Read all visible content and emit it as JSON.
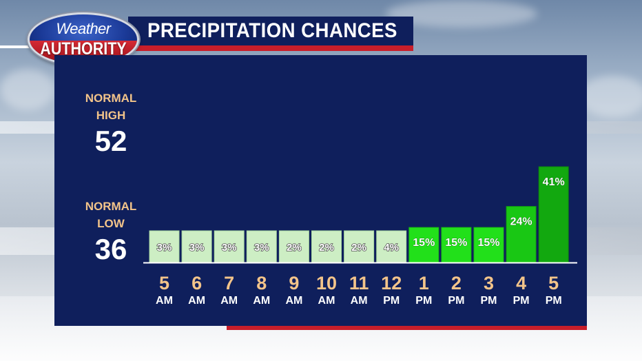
{
  "logo": {
    "top_text": "Weather",
    "bottom_text": "AUTHORITY"
  },
  "header": {
    "title": "PRECIPITATION CHANCES"
  },
  "normals": {
    "high_label_1": "NORMAL",
    "high_label_2": "HIGH",
    "high_value": "52",
    "low_label_1": "NORMAL",
    "low_label_2": "LOW",
    "low_value": "36"
  },
  "colors": {
    "panel": "#0f1f5c",
    "accent_red": "#c81e2a",
    "label_gold": "#f3c48a"
  },
  "chart_data": {
    "type": "bar",
    "title": "PRECIPITATION CHANCES",
    "xlabel": "",
    "ylabel": "",
    "ylim": [
      0,
      50
    ],
    "grid": false,
    "categories": [
      "5 AM",
      "6 AM",
      "7 AM",
      "8 AM",
      "9 AM",
      "10 AM",
      "11 AM",
      "12 PM",
      "1 PM",
      "2 PM",
      "3 PM",
      "4 PM",
      "5 PM"
    ],
    "tick_numbers": [
      "5",
      "6",
      "7",
      "8",
      "9",
      "10",
      "11",
      "12",
      "1",
      "2",
      "3",
      "4",
      "5"
    ],
    "tick_units": [
      "AM",
      "AM",
      "AM",
      "AM",
      "AM",
      "AM",
      "AM",
      "PM",
      "PM",
      "PM",
      "PM",
      "PM",
      "PM"
    ],
    "values": [
      3,
      3,
      3,
      3,
      2,
      2,
      2,
      4,
      15,
      15,
      15,
      24,
      41
    ],
    "value_labels": [
      "3%",
      "3%",
      "3%",
      "3%",
      "2%",
      "2%",
      "2%",
      "4%",
      "15%",
      "15%",
      "15%",
      "24%",
      "41%"
    ]
  }
}
